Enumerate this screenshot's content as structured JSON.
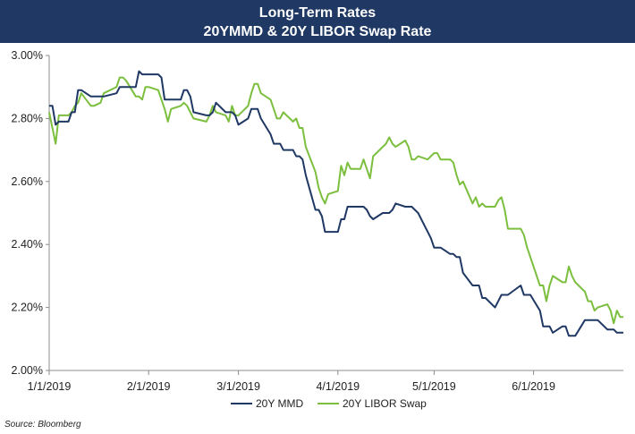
{
  "chart_data": {
    "type": "line",
    "title": "Long-Term Rates",
    "subtitle": "20YMMD & 20Y LIBOR Swap Rate",
    "xlabel": "",
    "ylabel": "",
    "x_ticks": [
      "1/1/2019",
      "2/1/2019",
      "3/1/2019",
      "4/1/2019",
      "5/1/2019",
      "6/1/2019"
    ],
    "y_ticks": [
      "2.00%",
      "2.20%",
      "2.40%",
      "2.60%",
      "2.80%",
      "3.00%"
    ],
    "ylim": [
      2.0,
      3.0
    ],
    "xlim": [
      "2019-01-01",
      "2019-06-29"
    ],
    "grid": false,
    "legend_position": "bottom-center",
    "source": "Source: Bloomberg",
    "series": [
      {
        "name": "20Y MMD",
        "color": "#1f3864",
        "points": [
          [
            "2019-01-01",
            2.84
          ],
          [
            "2019-01-02",
            2.84
          ],
          [
            "2019-01-03",
            2.78
          ],
          [
            "2019-01-04",
            2.79
          ],
          [
            "2019-01-07",
            2.79
          ],
          [
            "2019-01-08",
            2.82
          ],
          [
            "2019-01-09",
            2.82
          ],
          [
            "2019-01-10",
            2.89
          ],
          [
            "2019-01-11",
            2.89
          ],
          [
            "2019-01-14",
            2.87
          ],
          [
            "2019-01-15",
            2.87
          ],
          [
            "2019-01-17",
            2.87
          ],
          [
            "2019-01-18",
            2.87
          ],
          [
            "2019-01-22",
            2.88
          ],
          [
            "2019-01-23",
            2.9
          ],
          [
            "2019-01-24",
            2.9
          ],
          [
            "2019-01-25",
            2.9
          ],
          [
            "2019-01-28",
            2.9
          ],
          [
            "2019-01-29",
            2.95
          ],
          [
            "2019-01-30",
            2.94
          ],
          [
            "2019-01-31",
            2.94
          ],
          [
            "2019-02-01",
            2.94
          ],
          [
            "2019-02-04",
            2.94
          ],
          [
            "2019-02-05",
            2.93
          ],
          [
            "2019-02-06",
            2.86
          ],
          [
            "2019-02-07",
            2.86
          ],
          [
            "2019-02-08",
            2.86
          ],
          [
            "2019-02-11",
            2.86
          ],
          [
            "2019-02-12",
            2.89
          ],
          [
            "2019-02-13",
            2.89
          ],
          [
            "2019-02-14",
            2.87
          ],
          [
            "2019-02-15",
            2.82
          ],
          [
            "2019-02-19",
            2.81
          ],
          [
            "2019-02-20",
            2.81
          ],
          [
            "2019-02-21",
            2.82
          ],
          [
            "2019-02-22",
            2.85
          ],
          [
            "2019-02-25",
            2.82
          ],
          [
            "2019-02-26",
            2.82
          ],
          [
            "2019-02-27",
            2.82
          ],
          [
            "2019-02-28",
            2.81
          ],
          [
            "2019-03-01",
            2.78
          ],
          [
            "2019-03-04",
            2.8
          ],
          [
            "2019-03-05",
            2.83
          ],
          [
            "2019-03-06",
            2.83
          ],
          [
            "2019-03-07",
            2.83
          ],
          [
            "2019-03-08",
            2.8
          ],
          [
            "2019-03-11",
            2.75
          ],
          [
            "2019-03-12",
            2.72
          ],
          [
            "2019-03-13",
            2.72
          ],
          [
            "2019-03-14",
            2.72
          ],
          [
            "2019-03-15",
            2.7
          ],
          [
            "2019-03-18",
            2.7
          ],
          [
            "2019-03-19",
            2.68
          ],
          [
            "2019-03-20",
            2.68
          ],
          [
            "2019-03-21",
            2.67
          ],
          [
            "2019-03-22",
            2.62
          ],
          [
            "2019-03-25",
            2.51
          ],
          [
            "2019-03-26",
            2.51
          ],
          [
            "2019-03-27",
            2.49
          ],
          [
            "2019-03-28",
            2.44
          ],
          [
            "2019-03-29",
            2.44
          ],
          [
            "2019-04-01",
            2.44
          ],
          [
            "2019-04-02",
            2.48
          ],
          [
            "2019-04-03",
            2.48
          ],
          [
            "2019-04-04",
            2.52
          ],
          [
            "2019-04-05",
            2.52
          ],
          [
            "2019-04-08",
            2.52
          ],
          [
            "2019-04-09",
            2.52
          ],
          [
            "2019-04-10",
            2.51
          ],
          [
            "2019-04-11",
            2.49
          ],
          [
            "2019-04-12",
            2.48
          ],
          [
            "2019-04-15",
            2.5
          ],
          [
            "2019-04-16",
            2.5
          ],
          [
            "2019-04-17",
            2.5
          ],
          [
            "2019-04-18",
            2.51
          ],
          [
            "2019-04-19",
            2.53
          ],
          [
            "2019-04-22",
            2.52
          ],
          [
            "2019-04-23",
            2.52
          ],
          [
            "2019-04-24",
            2.52
          ],
          [
            "2019-04-25",
            2.51
          ],
          [
            "2019-04-26",
            2.5
          ],
          [
            "2019-04-29",
            2.44
          ],
          [
            "2019-04-30",
            2.42
          ],
          [
            "2019-05-01",
            2.39
          ],
          [
            "2019-05-02",
            2.39
          ],
          [
            "2019-05-03",
            2.39
          ],
          [
            "2019-05-06",
            2.37
          ],
          [
            "2019-05-07",
            2.37
          ],
          [
            "2019-05-08",
            2.36
          ],
          [
            "2019-05-09",
            2.36
          ],
          [
            "2019-05-10",
            2.31
          ],
          [
            "2019-05-13",
            2.27
          ],
          [
            "2019-05-14",
            2.27
          ],
          [
            "2019-05-15",
            2.27
          ],
          [
            "2019-05-16",
            2.23
          ],
          [
            "2019-05-17",
            2.23
          ],
          [
            "2019-05-20",
            2.2
          ],
          [
            "2019-05-21",
            2.22
          ],
          [
            "2019-05-22",
            2.24
          ],
          [
            "2019-05-23",
            2.24
          ],
          [
            "2019-05-24",
            2.24
          ],
          [
            "2019-05-28",
            2.27
          ],
          [
            "2019-05-29",
            2.24
          ],
          [
            "2019-05-30",
            2.24
          ],
          [
            "2019-05-31",
            2.24
          ],
          [
            "2019-06-03",
            2.19
          ],
          [
            "2019-06-04",
            2.14
          ],
          [
            "2019-06-05",
            2.14
          ],
          [
            "2019-06-06",
            2.14
          ],
          [
            "2019-06-07",
            2.12
          ],
          [
            "2019-06-10",
            2.14
          ],
          [
            "2019-06-11",
            2.14
          ],
          [
            "2019-06-12",
            2.11
          ],
          [
            "2019-06-13",
            2.11
          ],
          [
            "2019-06-14",
            2.11
          ],
          [
            "2019-06-17",
            2.16
          ],
          [
            "2019-06-18",
            2.16
          ],
          [
            "2019-06-19",
            2.16
          ],
          [
            "2019-06-20",
            2.16
          ],
          [
            "2019-06-21",
            2.16
          ],
          [
            "2019-06-24",
            2.13
          ],
          [
            "2019-06-25",
            2.13
          ],
          [
            "2019-06-26",
            2.13
          ],
          [
            "2019-06-27",
            2.12
          ],
          [
            "2019-06-28",
            2.12
          ],
          [
            "2019-06-29",
            2.12
          ]
        ]
      },
      {
        "name": "20Y LIBOR Swap",
        "color": "#7cbf3f",
        "points": [
          [
            "2019-01-01",
            2.82
          ],
          [
            "2019-01-02",
            2.77
          ],
          [
            "2019-01-03",
            2.72
          ],
          [
            "2019-01-04",
            2.81
          ],
          [
            "2019-01-07",
            2.81
          ],
          [
            "2019-01-08",
            2.82
          ],
          [
            "2019-01-09",
            2.84
          ],
          [
            "2019-01-10",
            2.85
          ],
          [
            "2019-01-11",
            2.88
          ],
          [
            "2019-01-14",
            2.84
          ],
          [
            "2019-01-15",
            2.84
          ],
          [
            "2019-01-17",
            2.85
          ],
          [
            "2019-01-18",
            2.88
          ],
          [
            "2019-01-22",
            2.9
          ],
          [
            "2019-01-23",
            2.93
          ],
          [
            "2019-01-24",
            2.93
          ],
          [
            "2019-01-25",
            2.92
          ],
          [
            "2019-01-28",
            2.87
          ],
          [
            "2019-01-29",
            2.87
          ],
          [
            "2019-01-30",
            2.86
          ],
          [
            "2019-01-31",
            2.9
          ],
          [
            "2019-02-01",
            2.9
          ],
          [
            "2019-02-04",
            2.89
          ],
          [
            "2019-02-05",
            2.86
          ],
          [
            "2019-02-06",
            2.83
          ],
          [
            "2019-02-07",
            2.79
          ],
          [
            "2019-02-08",
            2.83
          ],
          [
            "2019-02-11",
            2.84
          ],
          [
            "2019-02-12",
            2.85
          ],
          [
            "2019-02-13",
            2.84
          ],
          [
            "2019-02-14",
            2.82
          ],
          [
            "2019-02-15",
            2.8
          ],
          [
            "2019-02-19",
            2.79
          ],
          [
            "2019-02-20",
            2.81
          ],
          [
            "2019-02-21",
            2.84
          ],
          [
            "2019-02-22",
            2.82
          ],
          [
            "2019-02-25",
            2.81
          ],
          [
            "2019-02-26",
            2.79
          ],
          [
            "2019-02-27",
            2.84
          ],
          [
            "2019-02-28",
            2.81
          ],
          [
            "2019-03-01",
            2.81
          ],
          [
            "2019-03-04",
            2.84
          ],
          [
            "2019-03-05",
            2.88
          ],
          [
            "2019-03-06",
            2.91
          ],
          [
            "2019-03-07",
            2.91
          ],
          [
            "2019-03-08",
            2.88
          ],
          [
            "2019-03-11",
            2.86
          ],
          [
            "2019-03-12",
            2.83
          ],
          [
            "2019-03-13",
            2.8
          ],
          [
            "2019-03-14",
            2.8
          ],
          [
            "2019-03-15",
            2.82
          ],
          [
            "2019-03-18",
            2.79
          ],
          [
            "2019-03-19",
            2.8
          ],
          [
            "2019-03-20",
            2.77
          ],
          [
            "2019-03-21",
            2.77
          ],
          [
            "2019-03-22",
            2.71
          ],
          [
            "2019-03-25",
            2.63
          ],
          [
            "2019-03-26",
            2.58
          ],
          [
            "2019-03-27",
            2.55
          ],
          [
            "2019-03-28",
            2.53
          ],
          [
            "2019-03-29",
            2.56
          ],
          [
            "2019-04-01",
            2.57
          ],
          [
            "2019-04-02",
            2.65
          ],
          [
            "2019-04-03",
            2.62
          ],
          [
            "2019-04-04",
            2.66
          ],
          [
            "2019-04-05",
            2.64
          ],
          [
            "2019-04-08",
            2.64
          ],
          [
            "2019-04-09",
            2.67
          ],
          [
            "2019-04-10",
            2.64
          ],
          [
            "2019-04-11",
            2.61
          ],
          [
            "2019-04-12",
            2.68
          ],
          [
            "2019-04-15",
            2.71
          ],
          [
            "2019-04-16",
            2.72
          ],
          [
            "2019-04-17",
            2.74
          ],
          [
            "2019-04-18",
            2.72
          ],
          [
            "2019-04-19",
            2.71
          ],
          [
            "2019-04-22",
            2.73
          ],
          [
            "2019-04-23",
            2.71
          ],
          [
            "2019-04-24",
            2.67
          ],
          [
            "2019-04-25",
            2.67
          ],
          [
            "2019-04-26",
            2.68
          ],
          [
            "2019-04-29",
            2.67
          ],
          [
            "2019-04-30",
            2.68
          ],
          [
            "2019-05-01",
            2.69
          ],
          [
            "2019-05-02",
            2.69
          ],
          [
            "2019-05-03",
            2.67
          ],
          [
            "2019-05-06",
            2.67
          ],
          [
            "2019-05-07",
            2.66
          ],
          [
            "2019-05-08",
            2.62
          ],
          [
            "2019-05-09",
            2.59
          ],
          [
            "2019-05-10",
            2.6
          ],
          [
            "2019-05-13",
            2.53
          ],
          [
            "2019-05-14",
            2.55
          ],
          [
            "2019-05-15",
            2.52
          ],
          [
            "2019-05-16",
            2.53
          ],
          [
            "2019-05-17",
            2.52
          ],
          [
            "2019-05-20",
            2.52
          ],
          [
            "2019-05-21",
            2.54
          ],
          [
            "2019-05-22",
            2.55
          ],
          [
            "2019-05-23",
            2.51
          ],
          [
            "2019-05-24",
            2.45
          ],
          [
            "2019-05-28",
            2.45
          ],
          [
            "2019-05-29",
            2.43
          ],
          [
            "2019-05-30",
            2.39
          ],
          [
            "2019-05-31",
            2.36
          ],
          [
            "2019-06-03",
            2.27
          ],
          [
            "2019-06-04",
            2.27
          ],
          [
            "2019-06-05",
            2.22
          ],
          [
            "2019-06-06",
            2.27
          ],
          [
            "2019-06-07",
            2.3
          ],
          [
            "2019-06-10",
            2.28
          ],
          [
            "2019-06-11",
            2.28
          ],
          [
            "2019-06-12",
            2.33
          ],
          [
            "2019-06-13",
            2.3
          ],
          [
            "2019-06-14",
            2.28
          ],
          [
            "2019-06-17",
            2.25
          ],
          [
            "2019-06-18",
            2.22
          ],
          [
            "2019-06-19",
            2.22
          ],
          [
            "2019-06-20",
            2.19
          ],
          [
            "2019-06-21",
            2.2
          ],
          [
            "2019-06-24",
            2.21
          ],
          [
            "2019-06-25",
            2.19
          ],
          [
            "2019-06-26",
            2.15
          ],
          [
            "2019-06-27",
            2.19
          ],
          [
            "2019-06-28",
            2.17
          ],
          [
            "2019-06-29",
            2.17
          ]
        ]
      }
    ]
  }
}
